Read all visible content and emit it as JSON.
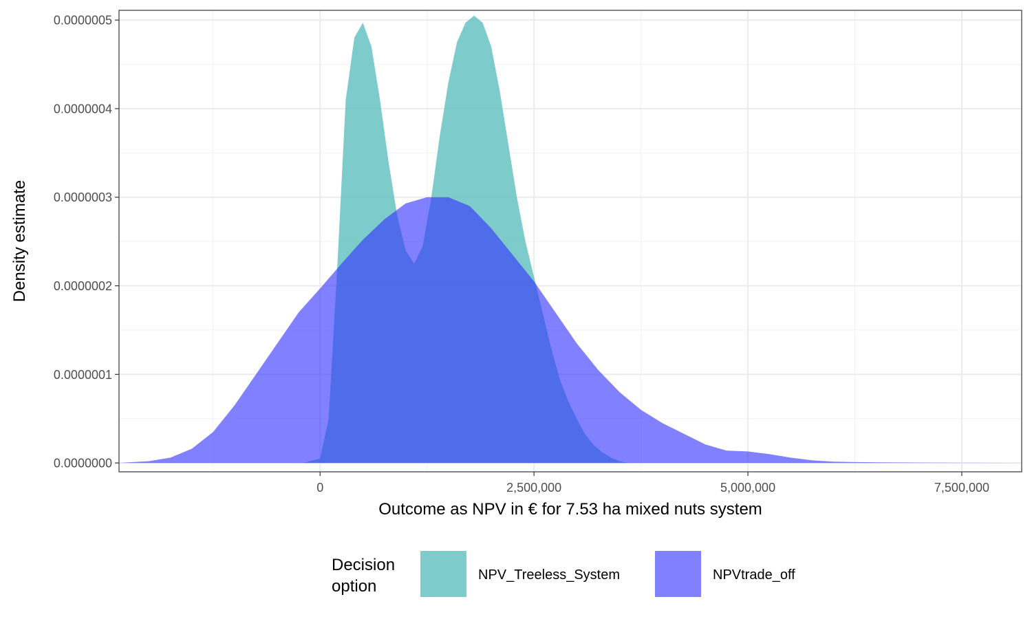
{
  "chart_data": {
    "type": "area",
    "title": "",
    "xlabel": "Outcome as NPV in € for 7.53 ha mixed nuts system",
    "ylabel": "Density estimate",
    "xlim": [
      -2350000,
      8200000
    ],
    "ylim": [
      -1e-08,
      5.11e-07
    ],
    "x_ticks": [
      0,
      2500000,
      5000000,
      7500000
    ],
    "x_tick_labels": [
      "0",
      "2,500,000",
      "5,000,000",
      "7,500,000"
    ],
    "y_ticks": [
      0,
      1e-07,
      2e-07,
      3e-07,
      4e-07,
      5e-07
    ],
    "y_tick_labels": [
      "0.0000000",
      "0.0000001",
      "0.0000002",
      "0.0000003",
      "0.0000004",
      "0.0000005"
    ],
    "grid": true,
    "legend": {
      "title": "Decision\noption",
      "title_lines": [
        "Decision",
        "option"
      ],
      "position": "bottom",
      "entries": [
        "NPV_Treeless_System",
        "NPVtrade_off"
      ]
    },
    "series": [
      {
        "name": "NPV_Treeless_System",
        "color": "#66C2C2",
        "opacity": 0.85,
        "x": [
          -200000,
          0,
          100000,
          200000,
          300000,
          400000,
          500000,
          600000,
          700000,
          800000,
          900000,
          1000000,
          1100000,
          1200000,
          1300000,
          1400000,
          1500000,
          1600000,
          1700000,
          1800000,
          1900000,
          2000000,
          2100000,
          2200000,
          2300000,
          2400000,
          2500000,
          2600000,
          2700000,
          2800000,
          2900000,
          3000000,
          3100000,
          3200000,
          3300000,
          3400000,
          3500000,
          3600000
        ],
        "y": [
          0,
          5e-09,
          5e-08,
          2.2e-07,
          4.1e-07,
          4.8e-07,
          4.97e-07,
          4.7e-07,
          4.1e-07,
          3.4e-07,
          2.8e-07,
          2.4e-07,
          2.25e-07,
          2.45e-07,
          3e-07,
          3.7e-07,
          4.3e-07,
          4.75e-07,
          4.97e-07,
          5.05e-07,
          4.97e-07,
          4.7e-07,
          4.2e-07,
          3.6e-07,
          3e-07,
          2.5e-07,
          2.1e-07,
          1.7e-07,
          1.3e-07,
          9.5e-08,
          7e-08,
          5e-08,
          3.2e-08,
          2e-08,
          1.2e-08,
          6e-09,
          2e-09,
          0
        ]
      },
      {
        "name": "NPVtrade_off",
        "color": "#3333FF",
        "opacity": 0.62,
        "x": [
          -2350000,
          -2000000,
          -1750000,
          -1500000,
          -1250000,
          -1000000,
          -750000,
          -500000,
          -250000,
          0,
          250000,
          500000,
          750000,
          1000000,
          1250000,
          1500000,
          1750000,
          2000000,
          2250000,
          2500000,
          2750000,
          3000000,
          3250000,
          3500000,
          3750000,
          4000000,
          4250000,
          4500000,
          4750000,
          5000000,
          5250000,
          5500000,
          5750000,
          6000000,
          6250000,
          6500000,
          7000000,
          7500000,
          8000000,
          8200000
        ],
        "y": [
          0,
          2e-09,
          6e-09,
          1.6e-08,
          3.5e-08,
          6.5e-08,
          1e-07,
          1.35e-07,
          1.7e-07,
          1.97e-07,
          2.25e-07,
          2.52e-07,
          2.75e-07,
          2.93e-07,
          3e-07,
          3e-07,
          2.9e-07,
          2.65e-07,
          2.35e-07,
          2.05e-07,
          1.7e-07,
          1.35e-07,
          1.05e-07,
          8e-08,
          6e-08,
          4.5e-08,
          3.3e-08,
          2.1e-08,
          1.4e-08,
          1.3e-08,
          1e-08,
          6e-09,
          3e-09,
          1.5e-09,
          1e-09,
          7e-10,
          4e-10,
          2e-10,
          1e-10,
          0
        ]
      }
    ]
  }
}
